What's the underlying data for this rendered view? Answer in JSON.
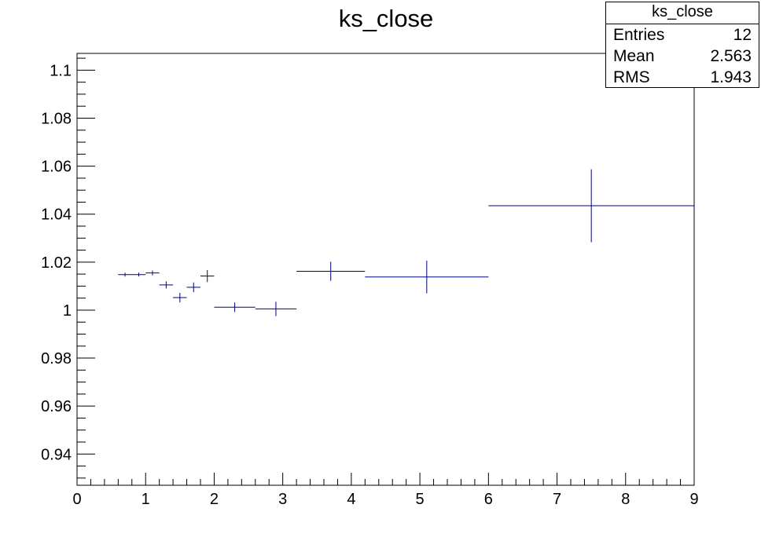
{
  "chart_data": {
    "type": "scatter",
    "title": "ks_close",
    "xlabel": "",
    "ylabel": "",
    "xlim": [
      0,
      9
    ],
    "ylim": [
      0.927,
      1.107
    ],
    "x_ticks": [
      0,
      1,
      2,
      3,
      4,
      5,
      6,
      7,
      8,
      9
    ],
    "y_ticks": [
      0.94,
      0.96,
      0.98,
      1,
      1.02,
      1.04,
      1.06,
      1.08,
      1.1
    ],
    "y_tick_labels": [
      "0.94",
      "0.96",
      "0.98",
      "1",
      "1.02",
      "1.04",
      "1.06",
      "1.08",
      "1.1"
    ],
    "series": [
      {
        "color": "#000080",
        "points": [
          {
            "x_low": 0.6,
            "x_high": 0.8,
            "y": 1.0148,
            "err": 0.0008
          },
          {
            "x_low": 0.8,
            "x_high": 1.0,
            "y": 1.0148,
            "err": 0.0008
          },
          {
            "x_low": 1.0,
            "x_high": 1.2,
            "y": 1.0155,
            "err": 0.001
          },
          {
            "x_low": 1.2,
            "x_high": 1.4,
            "y": 1.0105,
            "err": 0.0015
          },
          {
            "x_low": 1.4,
            "x_high": 1.6,
            "y": 1.0052,
            "err": 0.002
          },
          {
            "x_low": 1.6,
            "x_high": 1.8,
            "y": 1.0095,
            "err": 0.002
          },
          {
            "x_low": 1.8,
            "x_high": 2.0,
            "y": 1.0142,
            "err": 0.0025
          },
          {
            "x_low": 2.0,
            "x_high": 2.6,
            "y": 1.0012,
            "err": 0.002
          },
          {
            "x_low": 2.6,
            "x_high": 3.2,
            "y": 1.0005,
            "err": 0.003
          },
          {
            "x_low": 3.2,
            "x_high": 4.2,
            "y": 1.0162,
            "err": 0.004
          },
          {
            "x_low": 4.2,
            "x_high": 6.0,
            "y": 1.0138,
            "err": 0.0068
          },
          {
            "x_low": 6.0,
            "x_high": 9.0,
            "y": 1.0435,
            "err": 0.0152
          }
        ]
      }
    ],
    "legend": "none",
    "grid": false,
    "stats": {
      "title": "ks_close",
      "rows": [
        {
          "label": "Entries",
          "value": "12"
        },
        {
          "label": "Mean",
          "value": "2.563"
        },
        {
          "label": "RMS",
          "value": "1.943"
        }
      ]
    }
  }
}
